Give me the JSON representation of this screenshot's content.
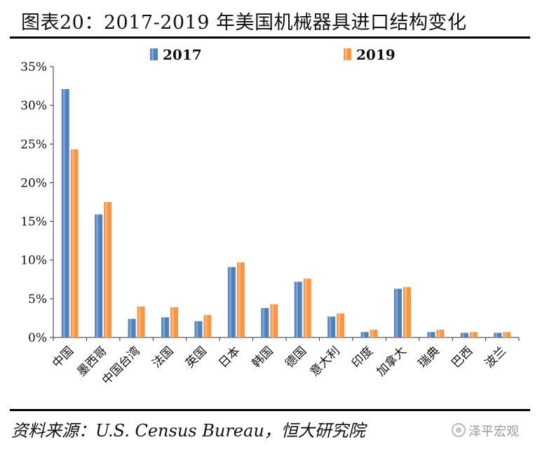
{
  "title": "图表20：2017-2019 年美国机械器具进口结构变化",
  "source": "资料来源：U.S.  Census Bureau，恒大研究院",
  "watermark": "泽平宏观",
  "chart_data": {
    "type": "bar",
    "categories": [
      "中国",
      "墨西哥",
      "中国台湾",
      "法国",
      "英国",
      "日本",
      "韩国",
      "德国",
      "意大利",
      "印度",
      "加拿大",
      "瑞典",
      "巴西",
      "波兰"
    ],
    "series": [
      {
        "name": "2017",
        "color": "#4f81bd",
        "values": [
          32.1,
          15.9,
          2.4,
          2.6,
          2.1,
          9.1,
          3.8,
          7.2,
          2.7,
          0.7,
          6.3,
          0.7,
          0.6,
          0.6
        ]
      },
      {
        "name": "2019",
        "color": "#f79646",
        "values": [
          24.3,
          17.5,
          4.0,
          3.9,
          2.9,
          9.7,
          4.3,
          7.6,
          3.1,
          1.0,
          6.5,
          1.0,
          0.7,
          0.7
        ]
      }
    ],
    "ylim": [
      0,
      35
    ],
    "yticks": [
      "0%",
      "5%",
      "10%",
      "15%",
      "20%",
      "25%",
      "30%",
      "35%"
    ],
    "grid": false,
    "legend": "top"
  }
}
